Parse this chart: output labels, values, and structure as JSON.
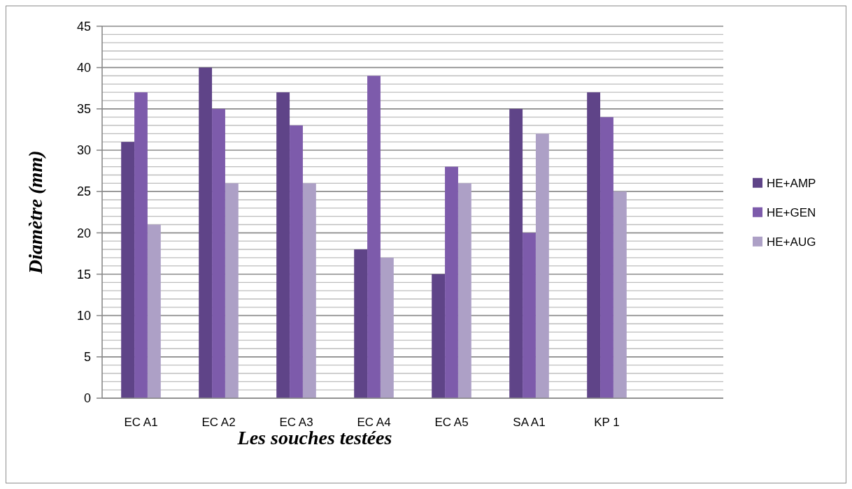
{
  "chart_data": {
    "type": "bar",
    "xlabel": "Les souches testées",
    "ylabel": "Diamètre (mm)",
    "categories": [
      "EC A1",
      "EC A2",
      "EC A3",
      "EC A4",
      "EC A5",
      "SA A1",
      "KP 1",
      null
    ],
    "series": [
      {
        "name": "HE+AMP",
        "color": "#5f4488",
        "values": [
          31,
          40,
          37,
          18,
          15,
          35,
          37,
          null
        ]
      },
      {
        "name": "HE+GEN",
        "color": "#7d5bab",
        "values": [
          37,
          35,
          33,
          39,
          28,
          20,
          34,
          null
        ]
      },
      {
        "name": "HE+AUG",
        "color": "#ada0c6",
        "values": [
          21,
          26,
          26,
          17,
          26,
          32,
          25,
          null
        ]
      }
    ],
    "ylim": [
      0,
      45
    ],
    "yticks": [
      0,
      {
        "value": 1,
        "label": null
      },
      {
        "value": 2,
        "label": null
      },
      {
        "value": 3,
        "label": null
      },
      {
        "value": 4,
        "label": null
      },
      5,
      {
        "value": 6,
        "label": null
      },
      {
        "value": 7,
        "label": null
      },
      {
        "value": 8,
        "label": null
      },
      {
        "value": 9,
        "label": null
      },
      10,
      {
        "value": 11,
        "label": null
      },
      {
        "value": 12,
        "label": null
      },
      {
        "value": 13,
        "label": null
      },
      {
        "value": 14,
        "label": null
      },
      15,
      {
        "value": 16,
        "label": null
      },
      {
        "value": 17,
        "label": null
      },
      {
        "value": 18,
        "label": null
      },
      {
        "value": 19,
        "label": null
      },
      20,
      {
        "value": 21,
        "label": null
      },
      {
        "value": 22,
        "label": null
      },
      {
        "value": 23,
        "label": null
      },
      {
        "value": 24,
        "label": null
      },
      25,
      {
        "value": 26,
        "label": null
      },
      {
        "value": 27,
        "label": null
      },
      {
        "value": 28,
        "label": null
      },
      {
        "value": 29,
        "label": null
      },
      30,
      {
        "value": 31,
        "label": null
      },
      {
        "value": 32,
        "label": null
      },
      {
        "value": 33,
        "label": null
      },
      {
        "value": 34,
        "label": null
      },
      35,
      {
        "value": 36,
        "label": null
      },
      {
        "value": 37,
        "label": null
      },
      {
        "value": 38,
        "label": null
      },
      {
        "value": 39,
        "label": null
      },
      40,
      {
        "value": 41,
        "label": null
      },
      {
        "value": 42,
        "label": null
      },
      {
        "value": 43,
        "label": null
      },
      {
        "value": 44,
        "label": null
      },
      45
    ],
    "grid": "y",
    "legend": "right"
  }
}
